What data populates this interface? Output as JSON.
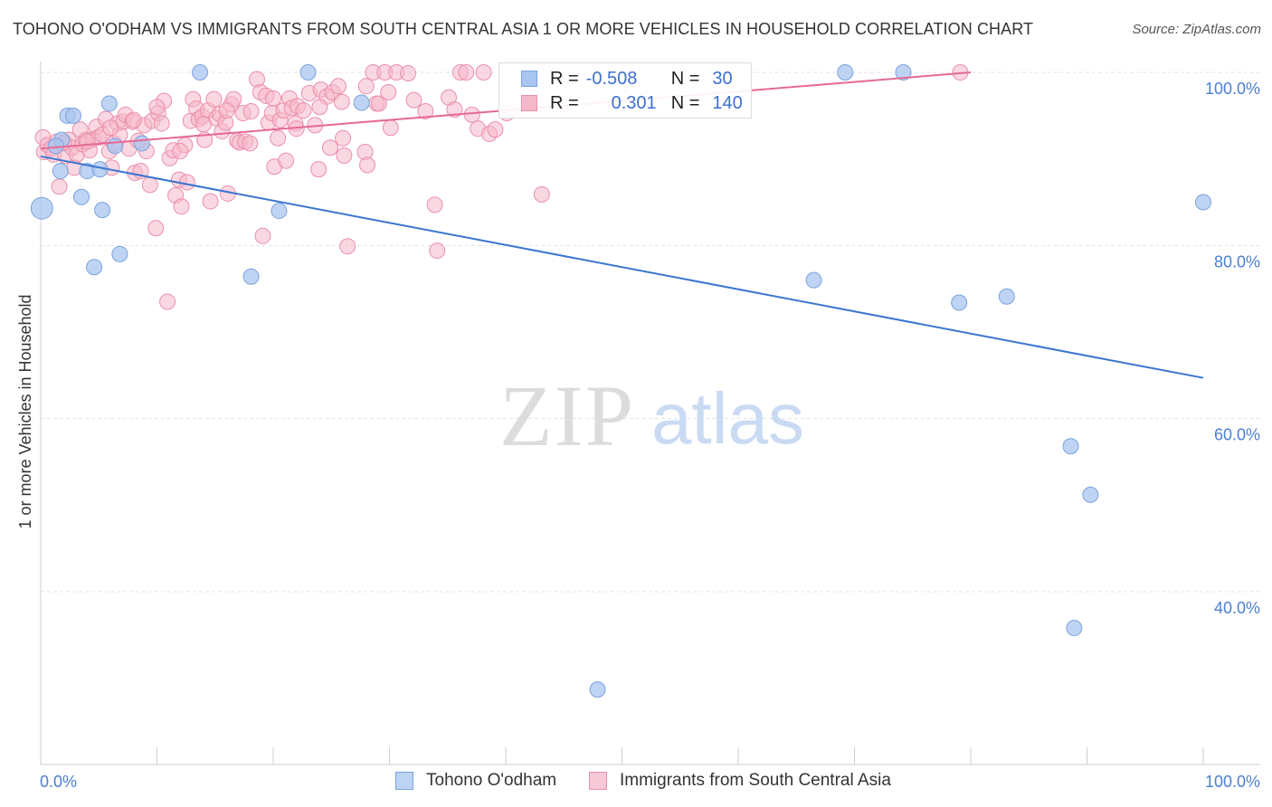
{
  "title": "TOHONO O'ODHAM VS IMMIGRANTS FROM SOUTH CENTRAL ASIA 1 OR MORE VEHICLES IN HOUSEHOLD CORRELATION CHART",
  "source": "Source: ZipAtlas.com",
  "watermark": {
    "zip": "ZIP",
    "atlas": "atlas"
  },
  "colors": {
    "blue_fill": "#a9c6f0",
    "blue_stroke": "#7aa3dc",
    "blue_line": "#3a76d0",
    "pink_fill": "#f5b8cb",
    "pink_stroke": "#ea8fab",
    "pink_line": "#e56a92",
    "tick_text": "#4a7fd4",
    "grid": "#e3e3e3"
  },
  "legend": {
    "rows": [
      {
        "r_label": "R =",
        "r_value": "-0.508",
        "n_label": "N =",
        "n_value": "30"
      },
      {
        "r_label": "R =",
        "r_value": "0.301",
        "n_label": "N =",
        "n_value": "140"
      }
    ]
  },
  "chart_data": {
    "type": "scatter",
    "title": "TOHONO O'ODHAM VS IMMIGRANTS FROM SOUTH CENTRAL ASIA 1 OR MORE VEHICLES IN HOUSEHOLD CORRELATION CHART",
    "xlabel": "",
    "ylabel": "1 or more Vehicles in Household",
    "xlim": [
      0,
      100
    ],
    "ylim": [
      20,
      102
    ],
    "x_tick_labels": [
      "0.0%",
      "100.0%"
    ],
    "y_ticks": [
      40,
      60,
      80,
      100
    ],
    "y_tick_labels": [
      "40.0%",
      "60.0%",
      "80.0%",
      "100.0%"
    ],
    "grid": true,
    "legend_position": "top-center",
    "series": [
      {
        "name": "Tohono O'odham",
        "r": -0.508,
        "n": 30,
        "trend": {
          "x0": 0,
          "y0": 90.3,
          "x1": 100,
          "y1": 64.7
        },
        "points": [
          [
            0.1,
            84.3
          ],
          [
            1.8,
            92.2
          ],
          [
            1.7,
            88.6
          ],
          [
            2.3,
            95.0
          ],
          [
            2.8,
            95.0
          ],
          [
            3.5,
            85.6
          ],
          [
            4.0,
            88.6
          ],
          [
            4.6,
            77.5
          ],
          [
            5.1,
            88.8
          ],
          [
            5.3,
            84.1
          ],
          [
            5.9,
            96.4
          ],
          [
            6.4,
            91.5
          ],
          [
            6.8,
            79.0
          ],
          [
            8.7,
            91.8
          ],
          [
            13.7,
            100.0
          ],
          [
            18.1,
            76.4
          ],
          [
            20.5,
            84.0
          ],
          [
            23.0,
            100.0
          ],
          [
            27.6,
            96.5
          ],
          [
            47.9,
            28.7
          ],
          [
            66.5,
            76.0
          ],
          [
            69.2,
            100.0
          ],
          [
            74.2,
            100.0
          ],
          [
            79.0,
            73.4
          ],
          [
            83.1,
            74.1
          ],
          [
            88.6,
            56.8
          ],
          [
            88.9,
            35.8
          ],
          [
            90.3,
            51.2
          ],
          [
            100.0,
            85.0
          ],
          [
            1.3,
            91.5
          ]
        ]
      },
      {
        "name": "Immigrants from South Central Asia",
        "r": 0.301,
        "n": 140,
        "trend": {
          "x0": 0,
          "y0": 91.2,
          "x1": 80,
          "y1": 100.0
        },
        "points": [
          [
            0.2,
            92.5
          ],
          [
            0.3,
            90.8
          ],
          [
            0.6,
            91.6
          ],
          [
            0.9,
            91.2
          ],
          [
            1.1,
            90.5
          ],
          [
            1.4,
            92.0
          ],
          [
            1.6,
            86.8
          ],
          [
            1.9,
            91.8
          ],
          [
            2.1,
            90.4
          ],
          [
            2.4,
            92.2
          ],
          [
            2.7,
            91.3
          ],
          [
            2.9,
            89.0
          ],
          [
            3.1,
            90.5
          ],
          [
            3.4,
            93.4
          ],
          [
            3.6,
            91.7
          ],
          [
            3.9,
            92.2
          ],
          [
            4.2,
            91.0
          ],
          [
            4.5,
            92.3
          ],
          [
            4.8,
            93.7
          ],
          [
            5.0,
            92.5
          ],
          [
            5.3,
            92.8
          ],
          [
            5.6,
            94.6
          ],
          [
            5.9,
            90.9
          ],
          [
            6.1,
            89.0
          ],
          [
            6.3,
            91.8
          ],
          [
            6.6,
            94.1
          ],
          [
            6.8,
            92.8
          ],
          [
            7.1,
            94.3
          ],
          [
            7.3,
            95.1
          ],
          [
            7.6,
            91.2
          ],
          [
            7.9,
            94.3
          ],
          [
            8.1,
            88.4
          ],
          [
            8.4,
            92.1
          ],
          [
            8.6,
            88.6
          ],
          [
            8.9,
            93.9
          ],
          [
            9.1,
            90.9
          ],
          [
            9.4,
            87.0
          ],
          [
            9.6,
            94.4
          ],
          [
            9.9,
            82.0
          ],
          [
            10.1,
            95.3
          ],
          [
            10.4,
            94.1
          ],
          [
            10.6,
            96.7
          ],
          [
            10.9,
            73.5
          ],
          [
            11.1,
            90.1
          ],
          [
            11.4,
            91.0
          ],
          [
            11.6,
            85.8
          ],
          [
            11.9,
            87.6
          ],
          [
            12.1,
            84.5
          ],
          [
            12.4,
            91.6
          ],
          [
            12.6,
            87.3
          ],
          [
            12.9,
            94.4
          ],
          [
            13.1,
            96.9
          ],
          [
            13.4,
            95.8
          ],
          [
            13.6,
            94.6
          ],
          [
            13.9,
            94.9
          ],
          [
            14.1,
            92.2
          ],
          [
            14.4,
            95.6
          ],
          [
            14.6,
            85.1
          ],
          [
            14.9,
            96.9
          ],
          [
            15.1,
            94.7
          ],
          [
            15.4,
            95.2
          ],
          [
            15.6,
            93.2
          ],
          [
            15.9,
            94.2
          ],
          [
            16.1,
            86.0
          ],
          [
            16.4,
            96.3
          ],
          [
            16.6,
            96.9
          ],
          [
            16.9,
            92.1
          ],
          [
            17.1,
            91.9
          ],
          [
            17.4,
            95.3
          ],
          [
            17.6,
            92.0
          ],
          [
            18.1,
            95.5
          ],
          [
            18.6,
            99.2
          ],
          [
            18.9,
            97.7
          ],
          [
            19.1,
            81.1
          ],
          [
            19.4,
            97.3
          ],
          [
            19.6,
            94.2
          ],
          [
            19.9,
            95.3
          ],
          [
            20.1,
            89.1
          ],
          [
            20.4,
            92.4
          ],
          [
            20.6,
            94.5
          ],
          [
            20.9,
            95.6
          ],
          [
            21.1,
            89.8
          ],
          [
            21.4,
            97.0
          ],
          [
            21.6,
            95.9
          ],
          [
            21.9,
            94.1
          ],
          [
            22.1,
            96.1
          ],
          [
            22.6,
            95.6
          ],
          [
            23.1,
            97.6
          ],
          [
            23.6,
            93.9
          ],
          [
            23.9,
            88.8
          ],
          [
            24.1,
            98.0
          ],
          [
            24.6,
            97.2
          ],
          [
            24.9,
            91.3
          ],
          [
            25.1,
            97.7
          ],
          [
            25.6,
            98.4
          ],
          [
            25.9,
            96.6
          ],
          [
            26.1,
            90.4
          ],
          [
            26.4,
            79.9
          ],
          [
            27.9,
            90.8
          ],
          [
            28.1,
            89.3
          ],
          [
            28.6,
            100.0
          ],
          [
            28.9,
            96.4
          ],
          [
            29.1,
            96.4
          ],
          [
            29.6,
            100.0
          ],
          [
            29.9,
            97.7
          ],
          [
            30.1,
            93.6
          ],
          [
            30.6,
            100.0
          ],
          [
            31.6,
            99.9
          ],
          [
            32.1,
            96.8
          ],
          [
            33.1,
            95.5
          ],
          [
            33.9,
            84.7
          ],
          [
            34.1,
            79.4
          ],
          [
            35.1,
            97.1
          ],
          [
            35.6,
            95.7
          ],
          [
            36.1,
            100.0
          ],
          [
            36.6,
            100.0
          ],
          [
            37.1,
            95.1
          ],
          [
            37.6,
            93.5
          ],
          [
            38.1,
            100.0
          ],
          [
            38.6,
            92.9
          ],
          [
            39.1,
            93.4
          ],
          [
            40.1,
            95.3
          ],
          [
            41.6,
            95.6
          ],
          [
            43.1,
            85.9
          ],
          [
            45.1,
            96.3
          ],
          [
            79.1,
            100.0
          ],
          [
            2.0,
            91.9
          ],
          [
            4.0,
            92.0
          ],
          [
            6.0,
            93.6
          ],
          [
            8.0,
            94.5
          ],
          [
            10.0,
            96.0
          ],
          [
            12.0,
            90.9
          ],
          [
            14.0,
            94.0
          ],
          [
            16.0,
            95.6
          ],
          [
            18.0,
            91.8
          ],
          [
            20.0,
            97.0
          ],
          [
            22.0,
            93.5
          ],
          [
            24.0,
            96.0
          ],
          [
            26.0,
            92.4
          ],
          [
            28.0,
            98.4
          ]
        ]
      }
    ]
  }
}
